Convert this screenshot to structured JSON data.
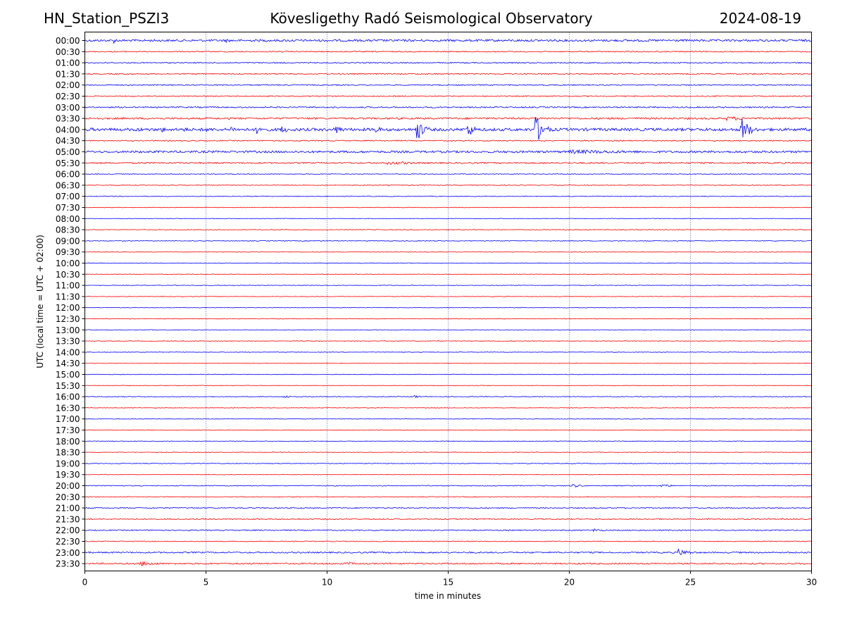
{
  "header": {
    "station": "HN_Station_PSZI3",
    "observatory": "Kövesligethy Radó Seismological Observatory",
    "date": "2024-08-19"
  },
  "chart_data": {
    "type": "line",
    "title": "Kövesligethy Radó Seismological Observatory",
    "xlabel": "time in minutes",
    "ylabel": "UTC (local time = UTC + 02:00)",
    "xlim": [
      0,
      30
    ],
    "x_ticks": [
      "0",
      "5",
      "10",
      "15",
      "20",
      "25",
      "30"
    ],
    "x_gridlines": [
      5,
      10,
      15,
      20,
      25
    ],
    "grid": "vertical dotted",
    "trace_colors": [
      "#0000ff",
      "#ff0000"
    ],
    "rows": [
      "00:00",
      "00:30",
      "01:00",
      "01:30",
      "02:00",
      "02:30",
      "03:00",
      "03:30",
      "04:00",
      "04:30",
      "05:00",
      "05:30",
      "06:00",
      "06:30",
      "07:00",
      "07:30",
      "08:00",
      "08:30",
      "09:00",
      "09:30",
      "10:00",
      "10:30",
      "11:00",
      "11:30",
      "12:00",
      "12:30",
      "13:00",
      "13:30",
      "14:00",
      "14:30",
      "15:00",
      "15:30",
      "16:00",
      "16:30",
      "17:00",
      "17:30",
      "18:00",
      "18:30",
      "19:00",
      "19:30",
      "20:00",
      "20:30",
      "21:00",
      "21:30",
      "22:00",
      "22:30",
      "23:00",
      "23:30"
    ],
    "row_noise": [
      3,
      1.5,
      1.5,
      1.5,
      1.5,
      1.5,
      1.8,
      2.5,
      4,
      1.5,
      3,
      2,
      1,
      1,
      1,
      0.8,
      0.8,
      1,
      1,
      0.8,
      0.8,
      0.8,
      0.8,
      0.8,
      0.8,
      0.8,
      0.8,
      0.8,
      0.8,
      0.8,
      0.8,
      0.8,
      1,
      0.8,
      0.8,
      0.8,
      0.8,
      0.8,
      1,
      0.8,
      1.2,
      1,
      1.5,
      1.5,
      1.5,
      1.2,
      2,
      2
    ],
    "events": [
      {
        "row": "00:00",
        "minute": 1.2,
        "amplitude": 4,
        "duration": 0.4
      },
      {
        "row": "00:00",
        "minute": 5.8,
        "amplitude": 3,
        "duration": 0.8
      },
      {
        "row": "01:30",
        "minute": 17.3,
        "amplitude": 2,
        "duration": 0.5
      },
      {
        "row": "03:30",
        "minute": 26.5,
        "amplitude": 3,
        "duration": 3.0
      },
      {
        "row": "04:00",
        "minute": 0.2,
        "amplitude": 3,
        "duration": 0.8
      },
      {
        "row": "04:00",
        "minute": 2.2,
        "amplitude": 4,
        "duration": 0.6
      },
      {
        "row": "04:00",
        "minute": 3.2,
        "amplitude": 4,
        "duration": 0.6
      },
      {
        "row": "04:00",
        "minute": 4.1,
        "amplitude": 4,
        "duration": 0.5
      },
      {
        "row": "04:00",
        "minute": 5.0,
        "amplitude": 5,
        "duration": 0.5
      },
      {
        "row": "04:00",
        "minute": 6.0,
        "amplitude": 5,
        "duration": 0.7
      },
      {
        "row": "04:00",
        "minute": 7.1,
        "amplitude": 7,
        "duration": 0.6
      },
      {
        "row": "04:00",
        "minute": 8.1,
        "amplitude": 6,
        "duration": 0.8
      },
      {
        "row": "04:00",
        "minute": 10.3,
        "amplitude": 8,
        "duration": 0.7
      },
      {
        "row": "04:00",
        "minute": 12.0,
        "amplitude": 6,
        "duration": 0.6
      },
      {
        "row": "04:00",
        "minute": 13.7,
        "amplitude": 18,
        "duration": 0.6
      },
      {
        "row": "04:00",
        "minute": 15.8,
        "amplitude": 12,
        "duration": 0.6
      },
      {
        "row": "04:00",
        "minute": 18.6,
        "amplitude": 22,
        "duration": 0.7
      },
      {
        "row": "04:00",
        "minute": 27.1,
        "amplitude": 20,
        "duration": 0.7
      },
      {
        "row": "05:00",
        "minute": 20.0,
        "amplitude": 3,
        "duration": 10.0
      },
      {
        "row": "05:30",
        "minute": 12.5,
        "amplitude": 2.5,
        "duration": 4.0
      },
      {
        "row": "16:00",
        "minute": 8.2,
        "amplitude": 2.5,
        "duration": 0.6
      },
      {
        "row": "16:00",
        "minute": 13.6,
        "amplitude": 2.5,
        "duration": 0.6
      },
      {
        "row": "20:00",
        "minute": 20.1,
        "amplitude": 3,
        "duration": 0.9
      },
      {
        "row": "20:00",
        "minute": 23.8,
        "amplitude": 3,
        "duration": 0.8
      },
      {
        "row": "22:00",
        "minute": 21.0,
        "amplitude": 2.5,
        "duration": 1.0
      },
      {
        "row": "23:00",
        "minute": 24.5,
        "amplitude": 5,
        "duration": 1.2
      },
      {
        "row": "23:30",
        "minute": 2.3,
        "amplitude": 4,
        "duration": 1.5
      },
      {
        "row": "23:30",
        "minute": 10.8,
        "amplitude": 3,
        "duration": 0.8
      }
    ]
  }
}
